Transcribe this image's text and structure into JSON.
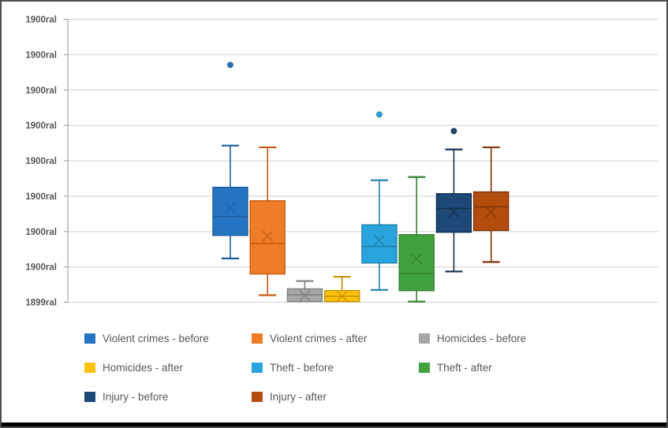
{
  "frame": {
    "background": "#ffffff",
    "border_color": "#4d4d4d",
    "bottom_bar_color": "#000000"
  },
  "chart_data": {
    "type": "boxplot",
    "title": "",
    "xlabel": "",
    "ylabel": "",
    "grid": true,
    "legend_position": "bottom",
    "y_axis": {
      "tick_labels_top_to_bottom": [
        "1900ral",
        "1900ral",
        "1900ral",
        "1900ral",
        "1900ral",
        "1900ral",
        "1900ral",
        "1900ral",
        "1899ral"
      ],
      "gridline_count": 9,
      "units": "gridline intervals above bottom axis line (values estimated from pixels)",
      "ylim": [
        0,
        8
      ],
      "label_color": "#595959",
      "gridline_color": "#d9d9d9",
      "axis_line_color": "#a6a6a6"
    },
    "series": [
      {
        "name": "Violent crimes - before",
        "fill": "#2474c2",
        "stroke": "#1b5c9e",
        "whisker_low": 1.24,
        "q1": 1.89,
        "median": 2.42,
        "mean": 2.67,
        "q3": 3.25,
        "whisker_high": 4.43,
        "outliers": [
          6.71
        ]
      },
      {
        "name": "Violent crimes - after",
        "fill": "#ef7d28",
        "stroke": "#c55a11",
        "whisker_low": 0.2,
        "q1": 0.8,
        "median": 1.66,
        "mean": 1.87,
        "q3": 2.87,
        "whisker_high": 4.38,
        "outliers": []
      },
      {
        "name": "Homicides - before",
        "fill": "#a6a6a6",
        "stroke": "#7f7f7f",
        "whisker_low": 0.02,
        "q1": 0.02,
        "median": 0.21,
        "mean": 0.19,
        "q3": 0.38,
        "whisker_high": 0.6,
        "outliers": []
      },
      {
        "name": "Homicides - after",
        "fill": "#fec10d",
        "stroke": "#c79100",
        "whisker_low": 0.02,
        "q1": 0.02,
        "median": 0.17,
        "mean": 0.17,
        "q3": 0.33,
        "whisker_high": 0.72,
        "outliers": []
      },
      {
        "name": "Theft - before",
        "fill": "#29a4dd",
        "stroke": "#1f7fad",
        "whisker_low": 0.35,
        "q1": 1.11,
        "median": 1.58,
        "mean": 1.75,
        "q3": 2.19,
        "whisker_high": 3.45,
        "outliers": [
          5.31
        ]
      },
      {
        "name": "Theft - after",
        "fill": "#42a13f",
        "stroke": "#318030",
        "whisker_low": 0.02,
        "q1": 0.33,
        "median": 0.82,
        "mean": 1.23,
        "q3": 1.91,
        "whisker_high": 3.54,
        "outliers": []
      },
      {
        "name": "Injury - before",
        "fill": "#1e4876",
        "stroke": "#14304f",
        "whisker_low": 0.87,
        "q1": 1.98,
        "median": 2.65,
        "mean": 2.55,
        "q3": 3.07,
        "whisker_high": 4.32,
        "outliers": [
          4.84
        ]
      },
      {
        "name": "Injury - after",
        "fill": "#b34d0e",
        "stroke": "#7f3608",
        "whisker_low": 1.14,
        "q1": 2.03,
        "median": 2.7,
        "mean": 2.55,
        "q3": 3.12,
        "whisker_high": 4.38,
        "outliers": []
      }
    ],
    "legend_rows": [
      [
        "Violent crimes - before",
        "Violent crimes - after",
        "Homicides - before"
      ],
      [
        "Homicides - after",
        "Theft - before",
        "Theft - after"
      ],
      [
        "Injury - before",
        "Injury - after"
      ]
    ]
  }
}
